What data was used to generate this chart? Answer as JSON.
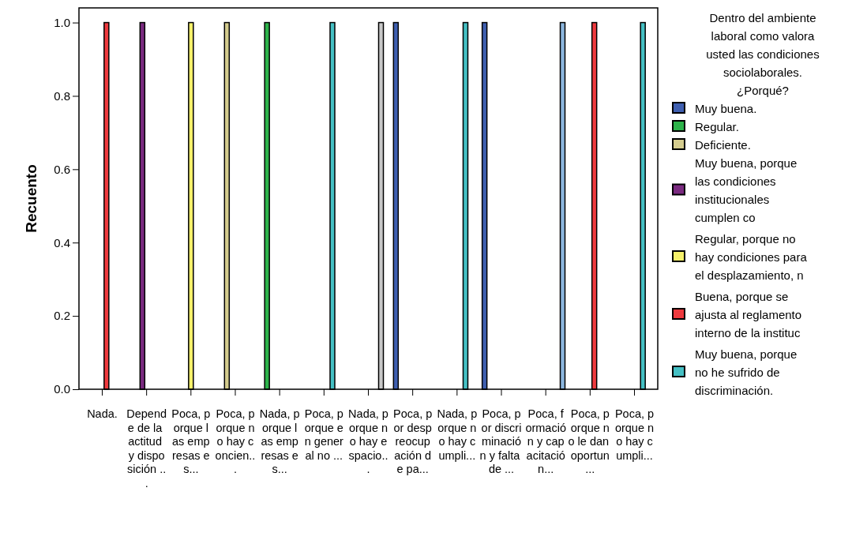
{
  "chart_data": {
    "type": "bar",
    "ylabel": "Recuento",
    "legend_title": "Dentro del ambiente laboral como valora usted las condiciones sociolaborales. ¿Porqué?",
    "categories": [
      "Nada.",
      "Depende de la actitud y disposición ...",
      "Poca, porque las empresas es...",
      "Poca, porque no hay concien...",
      "Nada, porque las empresas es...",
      "Poca, porque en general no ...",
      "Nada, porque no hay espacio...",
      "Poca, por despreocupación de pa...",
      "Nada, porque no hay cumpli...",
      "Poca, por discriminación y falta de ...",
      "Poca, formación y capacitación...",
      "Poca, porque no le dan oportun...",
      "Poca, porque no hay cumpli..."
    ],
    "series": [
      {
        "name": "Muy buena.",
        "color": "#3f5fb0",
        "values": [
          null,
          null,
          null,
          null,
          null,
          null,
          null,
          1,
          null,
          1,
          null,
          null,
          null
        ]
      },
      {
        "name": "Regular.",
        "color": "#2db34a",
        "values": [
          null,
          null,
          null,
          null,
          1,
          null,
          null,
          null,
          null,
          null,
          null,
          null,
          null
        ]
      },
      {
        "name": "Deficiente.",
        "color": "#d4cc8e",
        "values": [
          null,
          null,
          null,
          1,
          null,
          null,
          null,
          null,
          null,
          null,
          null,
          null,
          null
        ]
      },
      {
        "name": "Muy buena, porque las condiciones institucionales cumplen co",
        "color": "#7a2a80",
        "values": [
          null,
          1,
          null,
          null,
          null,
          null,
          null,
          null,
          null,
          null,
          null,
          null,
          null
        ]
      },
      {
        "name": "Regular, porque no hay condiciones para el desplazamiento, n",
        "color": "#f5f06a",
        "values": [
          null,
          null,
          1,
          null,
          null,
          null,
          null,
          null,
          null,
          null,
          null,
          null,
          null
        ]
      },
      {
        "name": "Buena, porque se ajusta al reglamento interno de la instituc",
        "color": "#ee3a3e",
        "values": [
          1,
          null,
          null,
          null,
          null,
          null,
          null,
          null,
          null,
          null,
          null,
          1,
          null
        ]
      },
      {
        "name": "Muy buena, porque no he sufrido de discriminación.",
        "color": "#45c0c4",
        "values": [
          null,
          null,
          null,
          null,
          null,
          1,
          null,
          null,
          1,
          null,
          null,
          null,
          1
        ]
      },
      {
        "color": "#c8c8c8",
        "values": [
          null,
          null,
          null,
          null,
          null,
          null,
          1,
          null,
          null,
          null,
          null,
          null,
          null
        ]
      },
      {
        "color": "#8cb6de",
        "values": [
          null,
          null,
          null,
          null,
          null,
          null,
          null,
          null,
          null,
          null,
          1,
          null,
          null
        ]
      }
    ],
    "ylim": [
      0,
      1.04
    ],
    "yticks": [
      {
        "value": 0,
        "label": "0.0"
      },
      {
        "value": 0.2,
        "label": "0.2"
      },
      {
        "value": 0.4,
        "label": "0.4"
      },
      {
        "value": 0.6,
        "label": "0.6"
      },
      {
        "value": 0.8,
        "label": "0.8"
      },
      {
        "value": 1,
        "label": "1.0"
      }
    ],
    "grid": false,
    "legend": "right"
  }
}
